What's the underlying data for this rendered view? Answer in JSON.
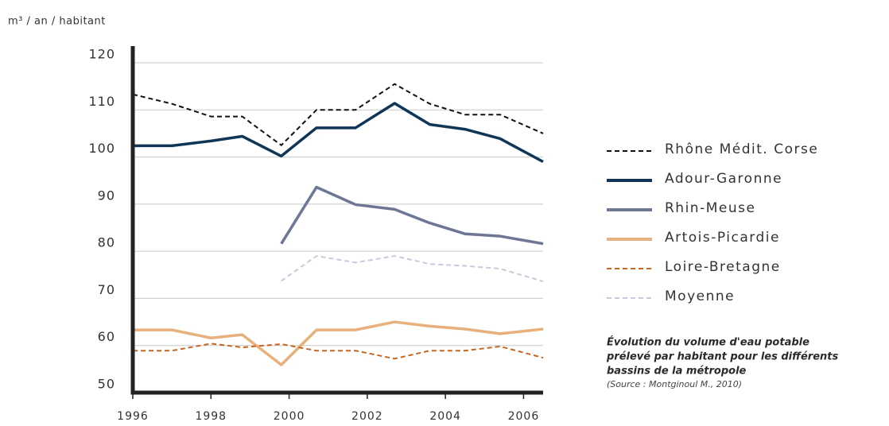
{
  "chart_data": {
    "type": "line",
    "ylabel": "m³ / an / habitant",
    "caption": [
      "Évolution du volume d'eau potable",
      "prélevé par habitant pour les différents",
      "bassins de la métropole"
    ],
    "source": "(Source : Montginoul M., 2010)",
    "x": [
      1996,
      1997,
      1998,
      1998.8,
      1999.8,
      2000.7,
      2001.7,
      2002.7,
      2003.6,
      2004.5,
      2005.4,
      2006.5
    ],
    "xlim": [
      1996,
      2006.5
    ],
    "xticks": [
      1996,
      1998,
      2000,
      2002,
      2004,
      2006
    ],
    "ylim": [
      50,
      120
    ],
    "yticks": [
      50,
      60,
      70,
      80,
      90,
      100,
      110,
      120
    ],
    "grid": true,
    "legend": "right",
    "series": [
      {
        "name": "Rhône Médit. Corse",
        "color": "#111111",
        "style": "dashed",
        "values": [
          113.3,
          111.3,
          108.6,
          108.6,
          102.5,
          110,
          110,
          115.5,
          111.3,
          109,
          109,
          105
        ]
      },
      {
        "name": "Adour-Garonne",
        "color": "#0f3557",
        "style": "solid",
        "values": [
          102.4,
          102.4,
          103.4,
          104.4,
          100.2,
          106.2,
          106.2,
          111.4,
          106.9,
          105.9,
          103.9,
          99
        ]
      },
      {
        "name": "Rhin-Meuse",
        "color": "#6e7696",
        "style": "solid",
        "values": [
          null,
          null,
          null,
          null,
          81.6,
          93.6,
          89.9,
          88.9,
          86,
          83.7,
          83.2,
          81.6
        ]
      },
      {
        "name": "Artois-Picardie",
        "color": "#e8b07a",
        "style": "solid",
        "values": [
          63.3,
          63.3,
          61.6,
          62.3,
          55.9,
          63.3,
          63.3,
          65,
          64.1,
          63.5,
          62.5,
          63.5
        ]
      },
      {
        "name": "Loire-Bretagne",
        "color": "#c9651f",
        "style": "dashed",
        "values": [
          58.9,
          58.9,
          60.4,
          59.6,
          60.3,
          58.9,
          58.9,
          57.2,
          58.9,
          58.9,
          59.8,
          57.4
        ]
      },
      {
        "name": "Moyenne",
        "color": "#c9c9dd",
        "style": "dashed",
        "values": [
          null,
          null,
          null,
          null,
          73.7,
          79,
          77.6,
          79,
          77.3,
          76.9,
          76.3,
          73.6
        ]
      }
    ]
  }
}
